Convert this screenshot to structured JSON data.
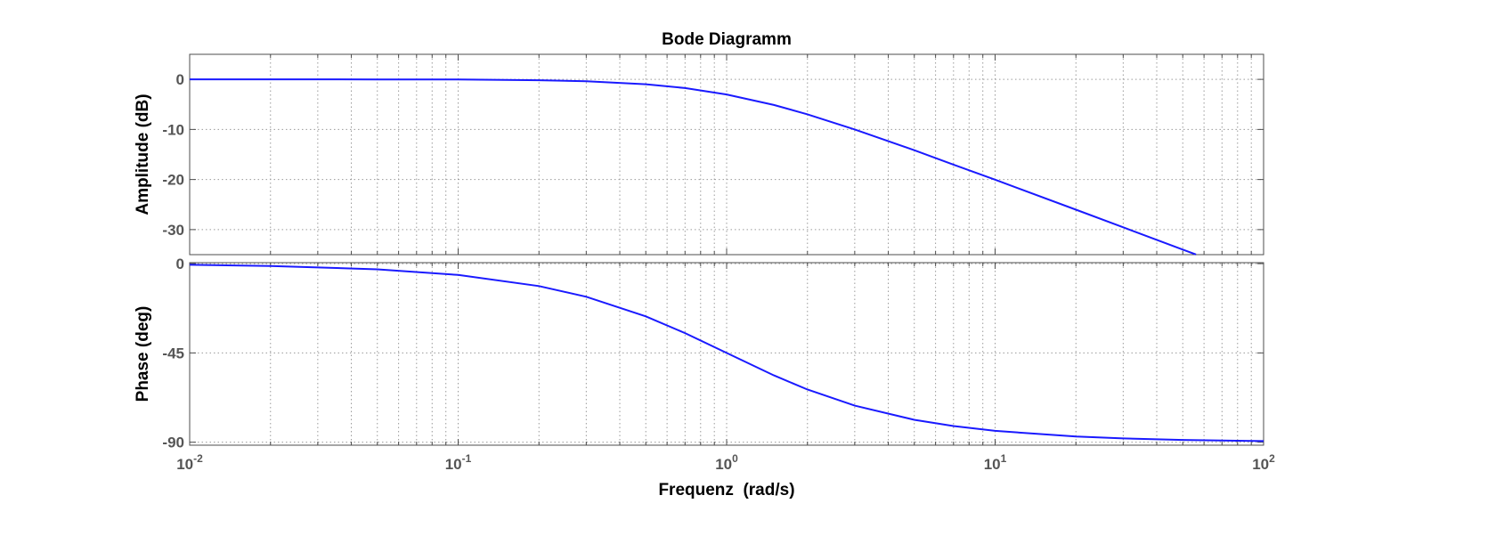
{
  "chart_data": {
    "type": "line",
    "title": "Bode Diagramm",
    "xlabel": "Frequenz  (rad/s)",
    "xscale": "log",
    "xlim": [
      0.01,
      100
    ],
    "x_ticks": [
      {
        "base": "10",
        "exp": "-2",
        "value": 0.01
      },
      {
        "base": "10",
        "exp": "-1",
        "value": 0.1
      },
      {
        "base": "10",
        "exp": "0",
        "value": 1
      },
      {
        "base": "10",
        "exp": "1",
        "value": 10
      },
      {
        "base": "10",
        "exp": "2",
        "value": 100
      }
    ],
    "grid": true,
    "panels": [
      {
        "name": "magnitude",
        "ylabel": "Amplitude (dB)",
        "ylim": [
          -35,
          5
        ],
        "y_ticks": [
          {
            "label": "0",
            "value": 0
          },
          {
            "label": "-10",
            "value": -10
          },
          {
            "label": "-20",
            "value": -20
          },
          {
            "label": "-30",
            "value": -30
          }
        ],
        "series": [
          {
            "color": "#1a1aff",
            "x": [
              0.01,
              0.02,
              0.05,
              0.1,
              0.2,
              0.3,
              0.5,
              0.7,
              1,
              1.5,
              2,
              3,
              5,
              7,
              10,
              20,
              30,
              50,
              56
            ],
            "y": [
              0,
              0,
              -0.01,
              -0.04,
              -0.17,
              -0.37,
              -0.97,
              -1.73,
              -3.01,
              -5.12,
              -6.99,
              -10,
              -14.15,
              -17.03,
              -20.04,
              -26.03,
              -29.54,
              -33.98,
              -34.96
            ]
          }
        ]
      },
      {
        "name": "phase",
        "ylabel": "Phase (deg)",
        "ylim": [
          -91.5,
          0.5
        ],
        "y_ticks": [
          {
            "label": "0",
            "value": 0
          },
          {
            "label": "-45",
            "value": -45
          },
          {
            "label": "-90",
            "value": -90
          }
        ],
        "series": [
          {
            "color": "#1a1aff",
            "x": [
              0.01,
              0.02,
              0.05,
              0.1,
              0.2,
              0.3,
              0.5,
              0.7,
              1,
              1.5,
              2,
              3,
              5,
              7,
              10,
              20,
              30,
              50,
              100
            ],
            "y": [
              -0.57,
              -1.15,
              -2.86,
              -5.71,
              -11.31,
              -16.7,
              -26.57,
              -34.99,
              -45,
              -56.31,
              -63.43,
              -71.57,
              -78.69,
              -81.87,
              -84.29,
              -87.14,
              -88.09,
              -88.85,
              -89.43
            ]
          }
        ]
      }
    ]
  }
}
